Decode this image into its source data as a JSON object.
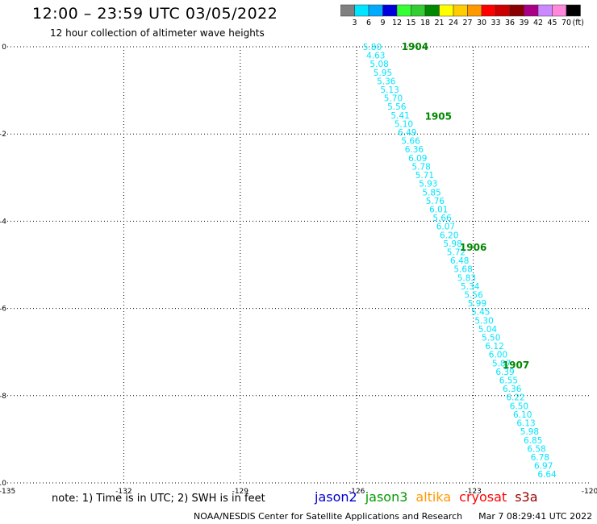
{
  "title": "12:00 – 23:59 UTC 03/05/2022",
  "subtitle": "12 hour collection of altimeter wave heights",
  "colorbar": {
    "colors": [
      "#808080",
      "#00e5ff",
      "#00aaff",
      "#0000dd",
      "#33ff33",
      "#33cc33",
      "#008800",
      "#ffff00",
      "#ffcc00",
      "#ff9900",
      "#ff0000",
      "#cc0000",
      "#880000",
      "#aa0088",
      "#cc88ff",
      "#ff88dd",
      "#000000"
    ],
    "labels": [
      "3",
      "6",
      "9",
      "12",
      "15",
      "18",
      "21",
      "24",
      "27",
      "30",
      "33",
      "36",
      "39",
      "42",
      "45",
      "70"
    ],
    "unit": "(ft)"
  },
  "note": "note:  1) Time is in UTC;  2) SWH is in feet",
  "satellites": [
    {
      "name": "jason2",
      "color": "#0000cc"
    },
    {
      "name": "jason3",
      "color": "#009900"
    },
    {
      "name": "altika",
      "color": "#ff9900"
    },
    {
      "name": "cryosat",
      "color": "#ff0000"
    },
    {
      "name": "s3a",
      "color": "#990000"
    }
  ],
  "footer": {
    "org": "NOAA/NESDIS Center for Satellite Applications and Research",
    "timestamp": "Mar  7 08:29:41 UTC 2022"
  },
  "chart_data": {
    "type": "scatter",
    "xlim": [
      -135,
      -120
    ],
    "ylim": [
      -10,
      0
    ],
    "xticks": [
      "-135",
      "-132",
      "-129",
      "-126",
      "-123",
      "-120"
    ],
    "yticks": [
      "0",
      "-2",
      "-4",
      "-6",
      "-8",
      "-10"
    ],
    "grid": true,
    "label_color": "#00e5ff",
    "time_color": "#008800",
    "swh": [
      "5.80",
      "4.63",
      "5.08",
      "5.95",
      "5.36",
      "5.13",
      "5.70",
      "5.56",
      "5.41",
      "5.10",
      "6.49",
      "5.66",
      "6.36",
      "6.09",
      "5.78",
      "5.71",
      "5.93",
      "5.85",
      "5.76",
      "6.01",
      "5.66",
      "6.07",
      "6.20",
      "5.98",
      "5.72",
      "6.48",
      "5.68",
      "5.83",
      "5.34",
      "5.56",
      "5.99",
      "5.45",
      "5.30",
      "5.04",
      "5.50",
      "6.12",
      "6.00",
      "5.87",
      "6.39",
      "6.55",
      "6.36",
      "6.22",
      "6.50",
      "6.10",
      "6.13",
      "5.98",
      "6.85",
      "6.58",
      "6.78",
      "6.97",
      "6.64"
    ],
    "start": {
      "lon": -125.6,
      "lat": 0.0
    },
    "end": {
      "lon": -121.1,
      "lat": -9.8
    },
    "times": [
      {
        "label": "1904",
        "lon": -124.5,
        "lat": 0.0
      },
      {
        "label": "1905",
        "lon": -123.9,
        "lat": -1.6
      },
      {
        "label": "1906",
        "lon": -123.0,
        "lat": -4.6
      },
      {
        "label": "1907",
        "lon": -121.9,
        "lat": -7.3
      }
    ]
  }
}
